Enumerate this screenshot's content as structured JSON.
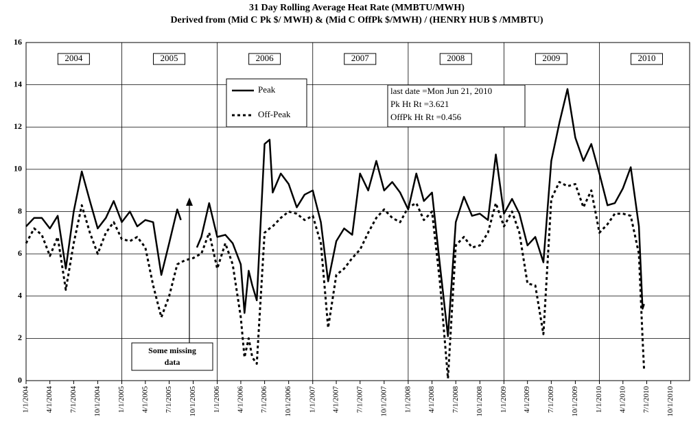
{
  "chart_data": {
    "type": "line",
    "title": "31 Day Rolling Average Heat Rate (MMBTU/MWH)",
    "subtitle": "Derived from  (Mid C Pk $/ MWH) & (Mid C OffPk $/MWH) / (HENRY HUB $ /MMBTU)",
    "x": [
      "2004-01-01",
      "2004-02-01",
      "2004-03-01",
      "2004-04-01",
      "2004-05-01",
      "2004-06-01",
      "2004-07-01",
      "2004-08-01",
      "2004-09-01",
      "2004-10-01",
      "2004-11-01",
      "2004-12-01",
      "2005-01-01",
      "2005-02-01",
      "2005-03-01",
      "2005-04-01",
      "2005-05-01",
      "2005-06-01",
      "2005-07-01",
      "2005-08-01",
      "2005-08-15",
      "2005-09-01",
      "2005-10-01",
      "2005-10-15",
      "2005-11-01",
      "2005-12-01",
      "2006-01-01",
      "2006-02-01",
      "2006-03-01",
      "2006-04-01",
      "2006-04-15",
      "2006-05-01",
      "2006-05-15",
      "2006-06-01",
      "2006-07-01",
      "2006-07-20",
      "2006-08-01",
      "2006-09-01",
      "2006-10-01",
      "2006-11-01",
      "2006-12-01",
      "2007-01-01",
      "2007-02-01",
      "2007-03-01",
      "2007-04-01",
      "2007-05-01",
      "2007-06-01",
      "2007-07-01",
      "2007-08-01",
      "2007-09-01",
      "2007-10-01",
      "2007-11-01",
      "2007-12-01",
      "2008-01-01",
      "2008-02-01",
      "2008-03-01",
      "2008-04-01",
      "2008-05-01",
      "2008-06-01",
      "2008-07-01",
      "2008-08-01",
      "2008-09-01",
      "2008-10-01",
      "2008-11-01",
      "2008-12-01",
      "2009-01-01",
      "2009-02-01",
      "2009-03-01",
      "2009-04-01",
      "2009-05-01",
      "2009-06-01",
      "2009-07-01",
      "2009-08-01",
      "2009-09-01",
      "2009-10-01",
      "2009-11-01",
      "2009-12-01",
      "2010-01-01",
      "2010-02-01",
      "2010-03-01",
      "2010-04-01",
      "2010-05-01",
      "2010-06-01",
      "2010-06-15",
      "2010-06-21"
    ],
    "series": [
      {
        "name": "Peak",
        "color": "#000000",
        "style": "solid",
        "values": [
          7.3,
          7.7,
          7.7,
          7.2,
          7.8,
          5.3,
          8.0,
          9.9,
          8.5,
          7.2,
          7.7,
          8.5,
          7.5,
          8.0,
          7.3,
          7.6,
          7.5,
          5.0,
          6.5,
          8.1,
          7.6,
          null,
          null,
          6.3,
          6.8,
          8.4,
          6.8,
          6.9,
          6.5,
          5.5,
          3.2,
          5.2,
          4.5,
          3.8,
          11.2,
          11.4,
          8.9,
          9.8,
          9.3,
          8.2,
          8.8,
          9.0,
          7.5,
          4.7,
          6.6,
          7.2,
          6.9,
          9.8,
          9.0,
          10.4,
          9.0,
          9.4,
          8.9,
          8.1,
          9.8,
          8.5,
          8.9,
          5.5,
          2.1,
          7.5,
          8.7,
          7.8,
          7.9,
          7.6,
          10.7,
          7.9,
          8.6,
          7.9,
          6.4,
          6.8,
          5.6,
          10.4,
          12.2,
          13.8,
          11.5,
          10.4,
          11.2,
          9.8,
          8.3,
          8.4,
          9.1,
          10.1,
          7.3,
          3.4,
          3.621
        ]
      },
      {
        "name": "Off-Peak",
        "color": "#000000",
        "style": "dashed",
        "values": [
          6.5,
          7.2,
          6.9,
          5.9,
          6.8,
          4.3,
          6.5,
          8.3,
          7.0,
          6.0,
          7.0,
          7.5,
          6.7,
          6.6,
          6.8,
          6.3,
          4.5,
          3.0,
          4.0,
          5.5,
          5.6,
          5.7,
          5.8,
          5.9,
          6.0,
          7.0,
          5.3,
          6.5,
          5.5,
          3.0,
          1.1,
          2.0,
          1.1,
          0.8,
          7.0,
          7.2,
          7.3,
          7.7,
          8.0,
          7.9,
          7.6,
          7.8,
          6.5,
          2.5,
          5.0,
          5.3,
          5.8,
          6.2,
          7.0,
          7.7,
          8.1,
          7.7,
          7.5,
          8.2,
          8.4,
          7.6,
          8.0,
          4.7,
          0.1,
          6.4,
          6.8,
          6.3,
          6.4,
          7.0,
          8.4,
          7.3,
          8.0,
          7.0,
          4.6,
          4.5,
          2.2,
          8.6,
          9.4,
          9.2,
          9.3,
          8.2,
          9.0,
          7.0,
          7.4,
          7.9,
          7.9,
          7.8,
          6.0,
          2.0,
          0.456
        ]
      }
    ],
    "xlim": [
      "2004-01-01",
      "2010-12-12"
    ],
    "xticks": [
      {
        "value": "2004-01-01",
        "label": "1/1/2004"
      },
      {
        "value": "2004-04-01",
        "label": "4/1/2004"
      },
      {
        "value": "2004-07-01",
        "label": "7/1/2004"
      },
      {
        "value": "2004-10-01",
        "label": "10/1/2004"
      },
      {
        "value": "2005-01-01",
        "label": "1/1/2005"
      },
      {
        "value": "2005-04-01",
        "label": "4/1/2005"
      },
      {
        "value": "2005-07-01",
        "label": "7/1/2005"
      },
      {
        "value": "2005-10-01",
        "label": "10/1/2005"
      },
      {
        "value": "2006-01-01",
        "label": "1/1/2006"
      },
      {
        "value": "2006-04-01",
        "label": "4/1/2006"
      },
      {
        "value": "2006-07-01",
        "label": "7/1/2006"
      },
      {
        "value": "2006-10-01",
        "label": "10/1/2006"
      },
      {
        "value": "2007-01-01",
        "label": "1/1/2007"
      },
      {
        "value": "2007-04-01",
        "label": "4/1/2007"
      },
      {
        "value": "2007-07-01",
        "label": "7/1/2007"
      },
      {
        "value": "2007-10-01",
        "label": "10/1/2007"
      },
      {
        "value": "2008-01-01",
        "label": "1/1/2008"
      },
      {
        "value": "2008-04-01",
        "label": "4/1/2008"
      },
      {
        "value": "2008-07-01",
        "label": "7/1/2008"
      },
      {
        "value": "2008-10-01",
        "label": "10/1/2008"
      },
      {
        "value": "2009-01-01",
        "label": "1/1/2009"
      },
      {
        "value": "2009-04-01",
        "label": "4/1/2009"
      },
      {
        "value": "2009-07-01",
        "label": "7/1/2009"
      },
      {
        "value": "2009-10-01",
        "label": "10/1/2009"
      },
      {
        "value": "2010-01-01",
        "label": "1/1/2010"
      },
      {
        "value": "2010-04-01",
        "label": "4/1/2010"
      },
      {
        "value": "2010-07-01",
        "label": "7/1/2010"
      },
      {
        "value": "2010-10-01",
        "label": "10/1/2010"
      }
    ],
    "ylim": [
      0,
      16
    ],
    "yticks": [
      0,
      2,
      4,
      6,
      8,
      10,
      12,
      14,
      16
    ],
    "grid": true,
    "year_labels": [
      "2004",
      "2005",
      "2006",
      "2007",
      "2008",
      "2009",
      "2010"
    ],
    "info_box": [
      "last date =Mon Jun 21, 2010",
      "Pk Ht Rt =3.621",
      "OffPk Ht Rt =0.456"
    ],
    "missing_note": [
      "Some missing",
      "data"
    ]
  }
}
